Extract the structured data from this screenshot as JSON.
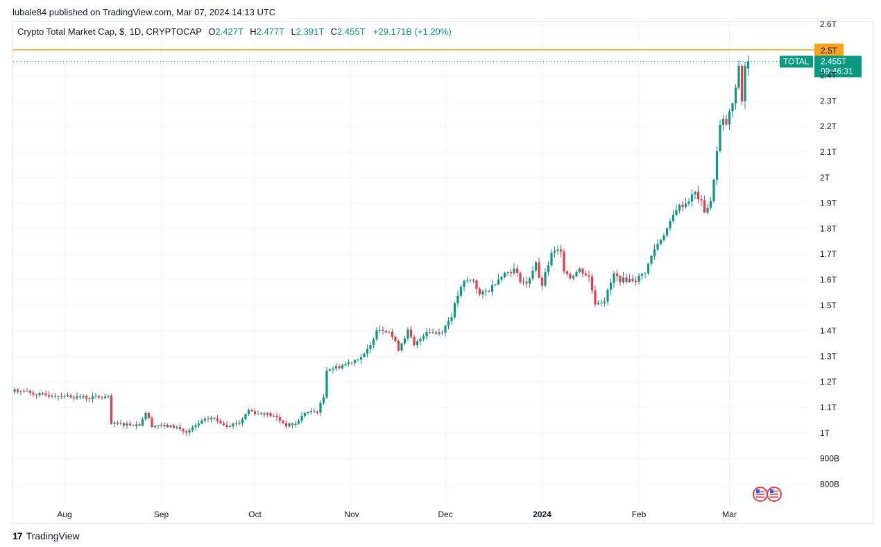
{
  "publisher_line": "lubale84 published on TradingView.com, Mar 07, 2024 14:13 UTC",
  "legend": {
    "symbol": "Crypto Total Market Cap, $, 1D, CRYPTOCAP",
    "open_label": "O",
    "open": "2.427T",
    "high_label": "H",
    "high": "2.477T",
    "low_label": "L",
    "low": "2.391T",
    "close_label": "C",
    "close": "2.455T",
    "change": "+29.171B (+1.20%)"
  },
  "footer": {
    "brand": "TradingView",
    "logo": "17"
  },
  "colors": {
    "up": "#089981",
    "down": "#f23645",
    "alert": "#f7a21b",
    "grid": "#f0f3fa"
  },
  "chart_data": {
    "type": "candlestick",
    "title": "Crypto Total Market Cap, $, 1D, CRYPTOCAP",
    "y_unit": "B",
    "y_range": [
      730,
      2610
    ],
    "y_ticks": [
      {
        "v": 2600,
        "label": "2.6T"
      },
      {
        "v": 2400,
        "label": "2.4T"
      },
      {
        "v": 2300,
        "label": "2.3T"
      },
      {
        "v": 2200,
        "label": "2.2T"
      },
      {
        "v": 2100,
        "label": "2.1T"
      },
      {
        "v": 2000,
        "label": "2T"
      },
      {
        "v": 1900,
        "label": "1.9T"
      },
      {
        "v": 1800,
        "label": "1.8T"
      },
      {
        "v": 1700,
        "label": "1.7T"
      },
      {
        "v": 1600,
        "label": "1.6T"
      },
      {
        "v": 1500,
        "label": "1.5T"
      },
      {
        "v": 1400,
        "label": "1.4T"
      },
      {
        "v": 1300,
        "label": "1.3T"
      },
      {
        "v": 1200,
        "label": "1.2T"
      },
      {
        "v": 1100,
        "label": "1.1T"
      },
      {
        "v": 1000,
        "label": "1T"
      },
      {
        "v": 900,
        "label": "900B"
      },
      {
        "v": 800,
        "label": "800B"
      }
    ],
    "x_labels": [
      {
        "day": 16,
        "label": "Aug",
        "bold": false
      },
      {
        "day": 47,
        "label": "Sep",
        "bold": false
      },
      {
        "day": 77,
        "label": "Oct",
        "bold": false
      },
      {
        "day": 108,
        "label": "Nov",
        "bold": false
      },
      {
        "day": 138,
        "label": "Dec",
        "bold": false
      },
      {
        "day": 169,
        "label": "2024",
        "bold": true
      },
      {
        "day": 200,
        "label": "Feb",
        "bold": false
      },
      {
        "day": 229,
        "label": "Mar",
        "bold": false
      }
    ],
    "x_start_date": "2023-07-16",
    "alert_level": {
      "value": 2500,
      "label": "2.5T"
    },
    "last_price": {
      "value": 2455,
      "label": "TOTAL",
      "price": "2.455T",
      "countdown": "09:46:31"
    },
    "anchors": [
      [
        0,
        1170
      ],
      [
        9,
        1148
      ],
      [
        16,
        1145
      ],
      [
        24,
        1138
      ],
      [
        30,
        1140
      ],
      [
        31,
        1035
      ],
      [
        35,
        1035
      ],
      [
        40,
        1033
      ],
      [
        42,
        1080
      ],
      [
        44,
        1030
      ],
      [
        52,
        1023
      ],
      [
        55,
        1000
      ],
      [
        60,
        1045
      ],
      [
        63,
        1060
      ],
      [
        68,
        1030
      ],
      [
        72,
        1040
      ],
      [
        75,
        1090
      ],
      [
        78,
        1075
      ],
      [
        80,
        1078
      ],
      [
        84,
        1060
      ],
      [
        87,
        1030
      ],
      [
        90,
        1035
      ],
      [
        93,
        1080
      ],
      [
        97,
        1085
      ],
      [
        99,
        1140
      ],
      [
        100,
        1250
      ],
      [
        104,
        1260
      ],
      [
        108,
        1280
      ],
      [
        112,
        1305
      ],
      [
        114,
        1340
      ],
      [
        116,
        1410
      ],
      [
        120,
        1400
      ],
      [
        123,
        1330
      ],
      [
        126,
        1400
      ],
      [
        128,
        1340
      ],
      [
        132,
        1400
      ],
      [
        135,
        1390
      ],
      [
        137,
        1400
      ],
      [
        140,
        1460
      ],
      [
        142,
        1540
      ],
      [
        144,
        1590
      ],
      [
        147,
        1600
      ],
      [
        149,
        1540
      ],
      [
        152,
        1560
      ],
      [
        156,
        1620
      ],
      [
        160,
        1640
      ],
      [
        162,
        1600
      ],
      [
        164,
        1580
      ],
      [
        167,
        1670
      ],
      [
        168,
        1600
      ],
      [
        169,
        1580
      ],
      [
        172,
        1700
      ],
      [
        175,
        1720
      ],
      [
        176,
        1640
      ],
      [
        178,
        1610
      ],
      [
        181,
        1640
      ],
      [
        184,
        1610
      ],
      [
        186,
        1510
      ],
      [
        189,
        1520
      ],
      [
        192,
        1620
      ],
      [
        194,
        1600
      ],
      [
        197,
        1600
      ],
      [
        199,
        1600
      ],
      [
        202,
        1630
      ],
      [
        205,
        1720
      ],
      [
        207,
        1760
      ],
      [
        210,
        1820
      ],
      [
        212,
        1880
      ],
      [
        215,
        1900
      ],
      [
        218,
        1940
      ],
      [
        220,
        1900
      ],
      [
        221,
        1870
      ],
      [
        223,
        1900
      ],
      [
        224,
        2000
      ],
      [
        226,
        2200
      ],
      [
        227,
        2220
      ],
      [
        228,
        2210
      ],
      [
        230,
        2290
      ],
      [
        231,
        2340
      ],
      [
        232,
        2440
      ],
      [
        233,
        2300
      ],
      [
        234,
        2440
      ],
      [
        235,
        2455
      ]
    ]
  }
}
